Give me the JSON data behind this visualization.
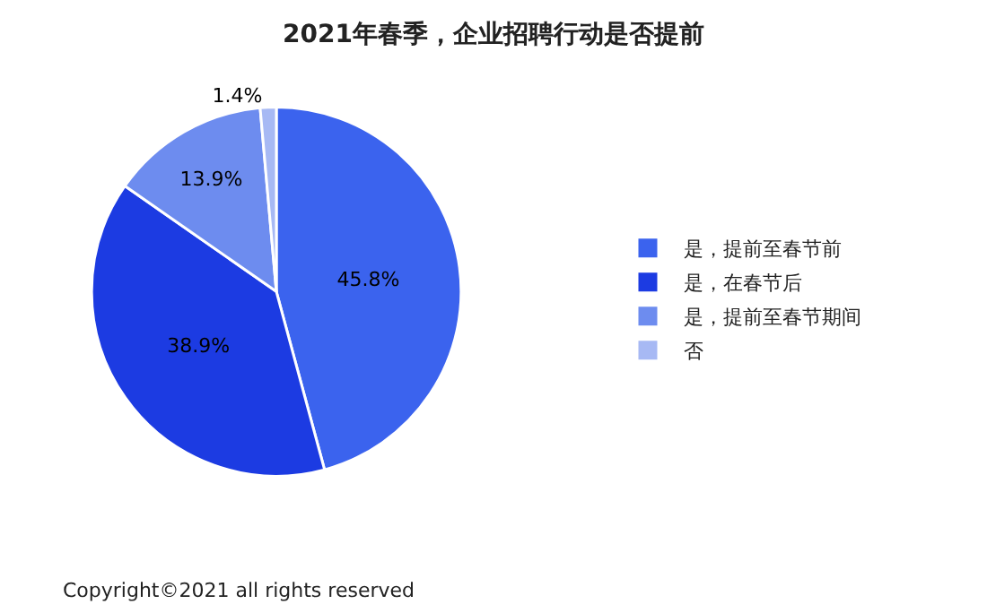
{
  "chart_data": {
    "type": "pie",
    "title": "2021年春季，企业招聘行动是否提前",
    "categories": [
      "是，提前至春节前",
      "是，在春节后",
      "是，提前至春节期间",
      "否"
    ],
    "values": [
      45.8,
      38.9,
      13.9,
      1.4
    ],
    "value_labels": [
      "45.8%",
      "38.9%",
      "13.9%",
      "1.4%"
    ],
    "colors": [
      "#3b63ee",
      "#1c3be2",
      "#6d8cef",
      "#a7b9f4"
    ],
    "legend": "right",
    "annotations": [
      "Copyright©2021 all rights reserved"
    ]
  }
}
